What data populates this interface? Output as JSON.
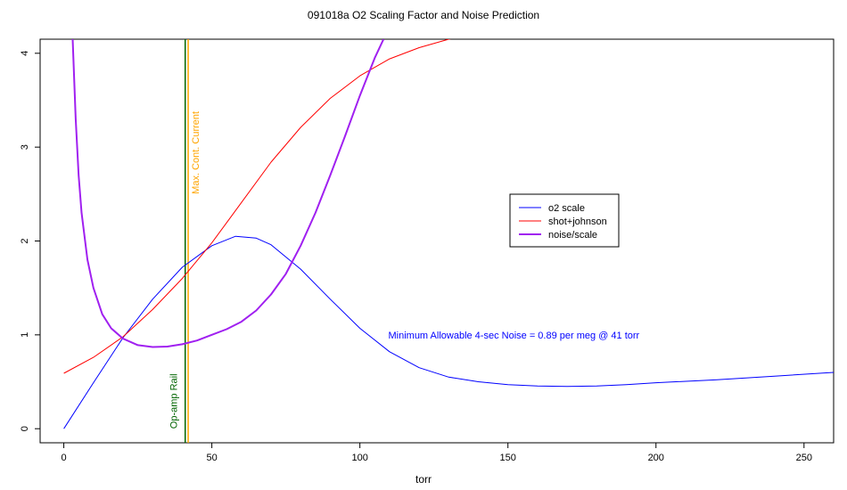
{
  "chart_data": {
    "type": "line",
    "title": "091018a   O2 Scaling Factor and Noise Prediction",
    "xlabel": "torr",
    "ylabel": "",
    "xlim": [
      -8,
      260
    ],
    "ylim": [
      -0.15,
      4.15
    ],
    "x_ticks": [
      0,
      50,
      100,
      150,
      200,
      250
    ],
    "y_ticks": [
      0,
      1,
      2,
      3,
      4
    ],
    "grid": false,
    "legend_position": "center-right",
    "series": [
      {
        "name": "o2 scale",
        "color": "#0000ff",
        "width": 1,
        "x": [
          0,
          10,
          20,
          30,
          40,
          50,
          58,
          65,
          70,
          80,
          90,
          100,
          110,
          120,
          130,
          140,
          150,
          160,
          170,
          180,
          190,
          200,
          220,
          240,
          260
        ],
        "y": [
          0.0,
          0.49,
          0.97,
          1.38,
          1.72,
          1.95,
          2.05,
          2.03,
          1.96,
          1.7,
          1.38,
          1.07,
          0.82,
          0.65,
          0.55,
          0.5,
          0.47,
          0.455,
          0.45,
          0.455,
          0.47,
          0.49,
          0.52,
          0.56,
          0.6
        ]
      },
      {
        "name": "shot+johnson",
        "color": "#ff0000",
        "width": 1,
        "x": [
          0,
          10,
          20,
          30,
          40,
          50,
          60,
          70,
          80,
          90,
          100,
          110,
          120,
          130,
          135
        ],
        "y": [
          0.59,
          0.76,
          0.98,
          1.27,
          1.6,
          1.98,
          2.41,
          2.84,
          3.21,
          3.52,
          3.76,
          3.94,
          4.06,
          4.15,
          4.18
        ]
      },
      {
        "name": "noise/scale",
        "color": "#a020f0",
        "width": 2,
        "x": [
          3,
          4,
          5,
          6,
          8,
          10,
          13,
          16,
          20,
          25,
          30,
          35,
          40,
          45,
          50,
          55,
          60,
          65,
          70,
          75,
          80,
          85,
          90,
          95,
          100,
          105,
          108
        ],
        "y": [
          4.15,
          3.3,
          2.7,
          2.3,
          1.8,
          1.5,
          1.22,
          1.07,
          0.96,
          0.89,
          0.87,
          0.875,
          0.9,
          0.94,
          1.0,
          1.06,
          1.14,
          1.26,
          1.43,
          1.65,
          1.95,
          2.3,
          2.7,
          3.12,
          3.55,
          3.95,
          4.15
        ]
      }
    ],
    "vertical_lines": [
      {
        "x": 41,
        "color": "#006400",
        "label": "Op-amp Rail"
      },
      {
        "x": 42,
        "color": "#ffa500",
        "label": "Max. Cont. Current"
      }
    ],
    "annotations": [
      {
        "text": "Minimum Allowable 4-sec Noise =  0.89  per meg @  41  torr",
        "x": 152,
        "y": 1.0,
        "color": "#0000ff"
      }
    ]
  }
}
